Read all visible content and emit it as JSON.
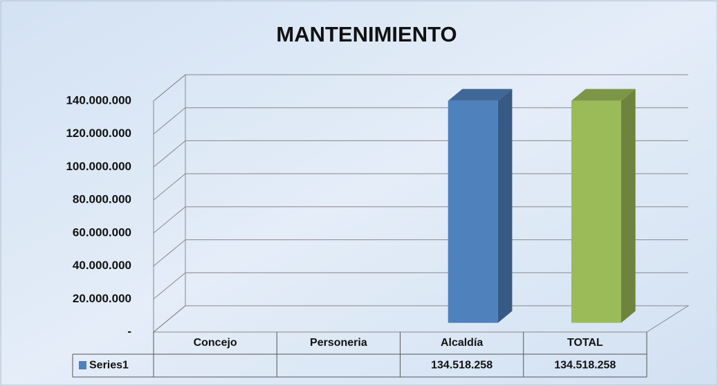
{
  "chart_data": {
    "type": "bar3d",
    "title": "MANTENIMIENTO",
    "categories": [
      "Concejo",
      "Personeria",
      "Alcaldía",
      "TOTAL"
    ],
    "series": [
      {
        "name": "Series1",
        "color": "#4f81bd",
        "values": [
          null,
          null,
          134518258,
          134518258
        ],
        "value_labels": [
          null,
          null,
          "134.518.258",
          "134.518.258"
        ]
      }
    ],
    "colors": [
      "#4f81bd",
      "#4f81bd",
      "#4f81bd",
      "#9bbb59"
    ],
    "ylim": [
      0,
      140000000
    ],
    "yticks": [
      {
        "value": 0,
        "label": "-"
      },
      {
        "value": 20000000,
        "label": "20.000.000"
      },
      {
        "value": 40000000,
        "label": "40.000.000"
      },
      {
        "value": 60000000,
        "label": "60.000.000"
      },
      {
        "value": 80000000,
        "label": "80.000.000"
      },
      {
        "value": 100000000,
        "label": "100.000.000"
      },
      {
        "value": 120000000,
        "label": "120.000.000"
      },
      {
        "value": 140000000,
        "label": "140.000.000"
      }
    ],
    "grid": true,
    "data_table": true
  }
}
